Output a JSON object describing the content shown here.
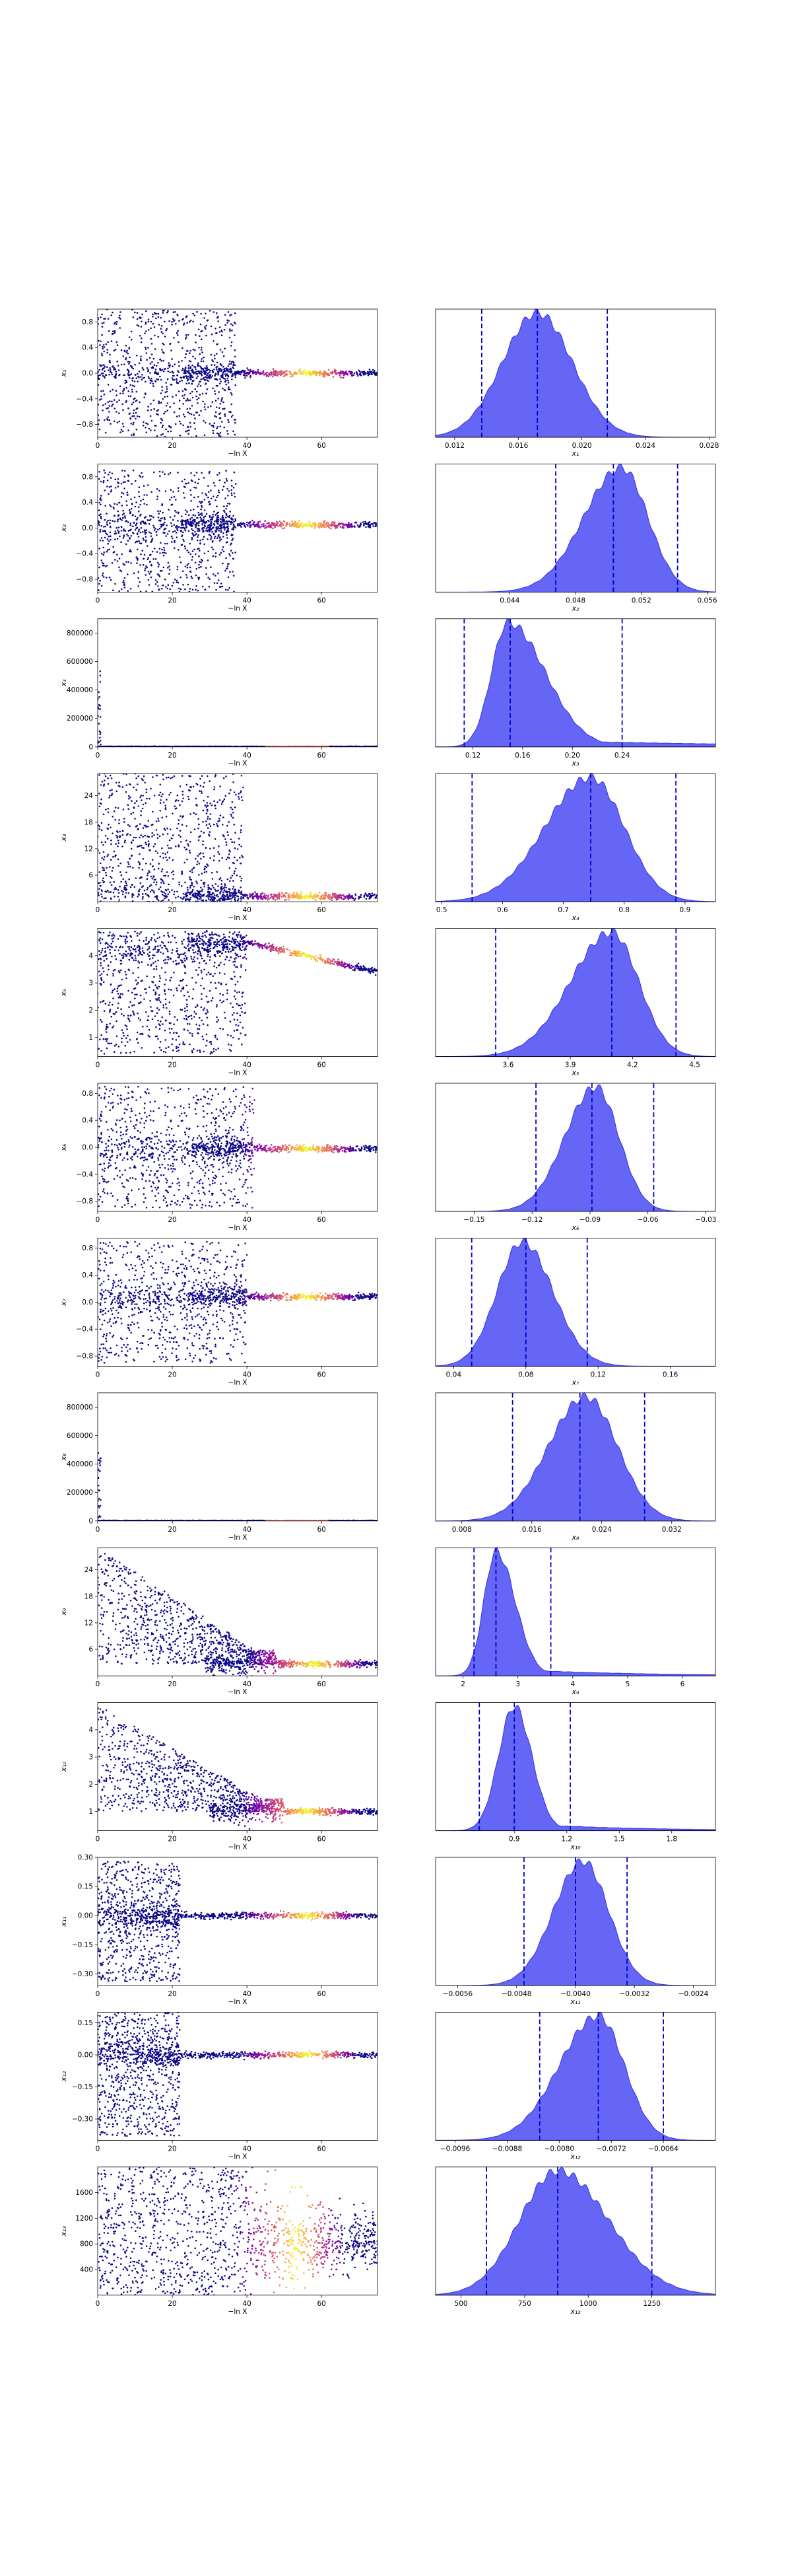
{
  "figure": {
    "trace_xlabel": "−ln X",
    "colors": {
      "kde_fill": "#4a4af5",
      "kde_line": "#3333e6",
      "quantile_line": "#0000cc",
      "scatter_low": "#0d0887",
      "scatter_mid": "#cc4778",
      "scatter_high": "#f0f921"
    }
  },
  "chart_data": [
    {
      "type": "scatter",
      "name": "x1",
      "ylabel": "x₁",
      "xlabel": "−ln X",
      "xlim": [
        0,
        75
      ],
      "ylim": [
        -1.0,
        1.0
      ],
      "yticks": [
        "−0.8",
        "−0.4",
        "0.0",
        "0.4",
        "0.8"
      ],
      "ytick_values": [
        -0.8,
        -0.4,
        0.0,
        0.4,
        0.8
      ],
      "xticks": [
        "0",
        "20",
        "40",
        "60"
      ],
      "xtick_values": [
        0,
        20,
        40,
        60
      ],
      "settle_x": 37,
      "converged_value": 0.0,
      "spread_low": -1.0,
      "spread_high": 1.0,
      "bright_at": [
        50,
        62
      ],
      "marginal": {
        "type": "area",
        "xlabel": "x₁",
        "xlim": [
          0.0108,
          0.0284
        ],
        "xticks": [
          "0.012",
          "0.016",
          "0.020",
          "0.024",
          "0.028"
        ],
        "xtick_values": [
          0.012,
          0.016,
          0.02,
          0.024,
          0.028
        ],
        "quantiles": [
          0.0137,
          0.0172,
          0.0216
        ],
        "mode": 0.0172,
        "sigma_left": 0.0022,
        "sigma_right": 0.0022
      }
    },
    {
      "type": "scatter",
      "name": "x2",
      "ylabel": "x₂",
      "xlabel": "−ln X",
      "xlim": [
        0,
        75
      ],
      "ylim": [
        -1.0,
        1.0
      ],
      "yticks": [
        "−0.8",
        "−0.4",
        "0.0",
        "0.4",
        "0.8"
      ],
      "ytick_values": [
        -0.8,
        -0.4,
        0.0,
        0.4,
        0.8
      ],
      "xticks": [
        "0",
        "20",
        "40",
        "60"
      ],
      "xtick_values": [
        0,
        20,
        40,
        60
      ],
      "settle_x": 37,
      "converged_value": 0.05,
      "spread_low": -1.0,
      "spread_high": 0.9,
      "bright_at": [
        50,
        62
      ],
      "marginal": {
        "type": "area",
        "xlabel": "x₂",
        "xlim": [
          0.0395,
          0.0565
        ],
        "xticks": [
          "0.044",
          "0.048",
          "0.052",
          "0.056"
        ],
        "xtick_values": [
          0.044,
          0.048,
          0.052,
          0.056
        ],
        "quantiles": [
          0.0468,
          0.0503,
          0.0542
        ],
        "mode": 0.0508,
        "sigma_left": 0.0023,
        "sigma_right": 0.0016
      }
    },
    {
      "type": "scatter",
      "name": "x3",
      "ylabel": "x₃",
      "xlabel": "−ln X",
      "xlim": [
        0,
        75
      ],
      "ylim": [
        0,
        900000
      ],
      "yticks": [
        "0",
        "200000",
        "400000",
        "600000",
        "800000"
      ],
      "ytick_values": [
        0,
        200000,
        400000,
        600000,
        800000
      ],
      "xticks": [
        "0",
        "20",
        "40",
        "60"
      ],
      "xtick_values": [
        0,
        20,
        40,
        60
      ],
      "settle_x": 2,
      "converged_value": 0,
      "spread_low": 0,
      "spread_high": 0,
      "spike": true,
      "bright_at": [
        50,
        62
      ],
      "marginal": {
        "type": "area",
        "xlabel": "x₃",
        "xlim": [
          0.09,
          0.315
        ],
        "xticks": [
          "0.12",
          "0.16",
          "0.20",
          "0.24"
        ],
        "xtick_values": [
          0.12,
          0.16,
          0.2,
          0.24
        ],
        "quantiles": [
          0.113,
          0.15,
          0.24
        ],
        "mode": 0.148,
        "sigma_left": 0.013,
        "sigma_right": 0.03,
        "long_tail": true
      }
    },
    {
      "type": "scatter",
      "name": "x4",
      "ylabel": "x₄",
      "xlabel": "−ln X",
      "xlim": [
        0,
        75
      ],
      "ylim": [
        0,
        29
      ],
      "yticks": [
        "6",
        "12",
        "18",
        "24"
      ],
      "ytick_values": [
        6,
        12,
        18,
        24
      ],
      "xticks": [
        "0",
        "20",
        "40",
        "60"
      ],
      "xtick_values": [
        0,
        20,
        40,
        60
      ],
      "settle_x": 39,
      "converged_value": 1.2,
      "spread_low": 1,
      "spread_high": 29,
      "bright_at": [
        50,
        62
      ],
      "marginal": {
        "type": "area",
        "xlabel": "x₄",
        "xlim": [
          0.49,
          0.95
        ],
        "xticks": [
          "0.5",
          "0.6",
          "0.7",
          "0.8",
          "0.9"
        ],
        "xtick_values": [
          0.5,
          0.6,
          0.7,
          0.8,
          0.9
        ],
        "quantiles": [
          0.55,
          0.745,
          0.885
        ],
        "mode": 0.745,
        "sigma_left": 0.075,
        "sigma_right": 0.055
      }
    },
    {
      "type": "scatter",
      "name": "x5",
      "ylabel": "x₅",
      "xlabel": "−ln X",
      "xlim": [
        0,
        75
      ],
      "ylim": [
        0.3,
        5.0
      ],
      "yticks": [
        "1",
        "2",
        "3",
        "4"
      ],
      "ytick_values": [
        1,
        2,
        3,
        4
      ],
      "xticks": [
        "0",
        "20",
        "40",
        "60"
      ],
      "xtick_values": [
        0,
        20,
        40,
        60
      ],
      "settle_x": 40,
      "converged_value": 4.2,
      "spread_low": 0.4,
      "spread_high": 4.9,
      "bright_at": [
        50,
        62
      ],
      "band_ramp": [
        40,
        75,
        4.5,
        3.4
      ],
      "marginal": {
        "type": "area",
        "xlabel": "x₅",
        "xlim": [
          3.25,
          4.6
        ],
        "xticks": [
          "3.6",
          "3.9",
          "4.2",
          "4.5"
        ],
        "xtick_values": [
          3.6,
          3.9,
          4.2,
          4.5
        ],
        "quantiles": [
          3.54,
          4.1,
          4.41
        ],
        "mode": 4.1,
        "sigma_left": 0.2,
        "sigma_right": 0.13
      }
    },
    {
      "type": "scatter",
      "name": "x6",
      "ylabel": "x₆",
      "xlabel": "−ln X",
      "xlim": [
        0,
        75
      ],
      "ylim": [
        -0.95,
        0.95
      ],
      "yticks": [
        "−0.8",
        "−0.4",
        "0.0",
        "0.4",
        "0.8"
      ],
      "ytick_values": [
        -0.8,
        -0.4,
        0.0,
        0.4,
        0.8
      ],
      "xticks": [
        "0",
        "20",
        "40",
        "60"
      ],
      "xtick_values": [
        0,
        20,
        40,
        60
      ],
      "settle_x": 42,
      "converged_value": -0.02,
      "spread_low": -0.9,
      "spread_high": 0.9,
      "bright_at": [
        50,
        62
      ],
      "marginal": {
        "type": "area",
        "xlabel": "x₆",
        "xlim": [
          -0.17,
          -0.025
        ],
        "xticks": [
          "−0.15",
          "−0.12",
          "−0.09",
          "−0.06",
          "−0.03"
        ],
        "xtick_values": [
          -0.15,
          -0.12,
          -0.09,
          -0.06,
          -0.03
        ],
        "quantiles": [
          -0.118,
          -0.089,
          -0.057
        ],
        "mode": -0.087,
        "sigma_left": 0.016,
        "sigma_right": 0.012
      }
    },
    {
      "type": "scatter",
      "name": "x7",
      "ylabel": "x₇",
      "xlabel": "−ln X",
      "xlim": [
        0,
        75
      ],
      "ylim": [
        -0.95,
        0.95
      ],
      "yticks": [
        "−0.8",
        "−0.4",
        "0.0",
        "0.4",
        "0.8"
      ],
      "ytick_values": [
        -0.8,
        -0.4,
        0.0,
        0.4,
        0.8
      ],
      "xticks": [
        "0",
        "20",
        "40",
        "60"
      ],
      "xtick_values": [
        0,
        20,
        40,
        60
      ],
      "settle_x": 40,
      "converged_value": 0.08,
      "spread_low": -0.9,
      "spread_high": 0.9,
      "bright_at": [
        50,
        62
      ],
      "marginal": {
        "type": "area",
        "xlabel": "x₇",
        "xlim": [
          0.03,
          0.185
        ],
        "xticks": [
          "0.04",
          "0.08",
          "0.12",
          "0.16"
        ],
        "xtick_values": [
          0.04,
          0.08,
          0.12,
          0.16
        ],
        "quantiles": [
          0.05,
          0.08,
          0.114
        ],
        "mode": 0.078,
        "sigma_left": 0.014,
        "sigma_right": 0.017
      }
    },
    {
      "type": "scatter",
      "name": "x8",
      "ylabel": "x₈",
      "xlabel": "−ln X",
      "xlim": [
        0,
        75
      ],
      "ylim": [
        0,
        900000
      ],
      "yticks": [
        "0",
        "200000",
        "400000",
        "600000",
        "800000"
      ],
      "ytick_values": [
        0,
        200000,
        400000,
        600000,
        800000
      ],
      "xticks": [
        "0",
        "20",
        "40",
        "60"
      ],
      "xtick_values": [
        0,
        20,
        40,
        60
      ],
      "settle_x": 2,
      "converged_value": 0,
      "spread_low": 0,
      "spread_high": 0,
      "spike": true,
      "bright_at": [
        50,
        62
      ],
      "marginal": {
        "type": "area",
        "xlabel": "x₈",
        "xlim": [
          0.005,
          0.037
        ],
        "xticks": [
          "0.008",
          "0.016",
          "0.024",
          "0.032"
        ],
        "xtick_values": [
          0.008,
          0.016,
          0.024,
          0.032
        ],
        "quantiles": [
          0.0138,
          0.0215,
          0.0289
        ],
        "mode": 0.0222,
        "sigma_left": 0.0043,
        "sigma_right": 0.0036
      }
    },
    {
      "type": "scatter",
      "name": "x9",
      "ylabel": "x₉",
      "xlabel": "−ln X",
      "xlim": [
        0,
        75
      ],
      "ylim": [
        0,
        29
      ],
      "yticks": [
        "6",
        "12",
        "18",
        "24"
      ],
      "ytick_values": [
        6,
        12,
        18,
        24
      ],
      "xticks": [
        "0",
        "20",
        "40",
        "60"
      ],
      "xtick_values": [
        0,
        20,
        40,
        60
      ],
      "settle_x": 48,
      "converged_value": 2.7,
      "spread_low": 1,
      "spread_high": 29,
      "decay": true,
      "bright_at": [
        52,
        64
      ],
      "marginal": {
        "type": "area",
        "xlabel": "x₉",
        "xlim": [
          1.5,
          6.6
        ],
        "xticks": [
          "2",
          "3",
          "4",
          "5",
          "6"
        ],
        "xtick_values": [
          2,
          3,
          4,
          5,
          6
        ],
        "quantiles": [
          2.2,
          2.6,
          3.6
        ],
        "mode": 2.6,
        "sigma_left": 0.22,
        "sigma_right": 0.35,
        "long_tail": true
      }
    },
    {
      "type": "scatter",
      "name": "x10",
      "ylabel": "x₁₀",
      "xlabel": "−ln X",
      "xlim": [
        0,
        75
      ],
      "ylim": [
        0.3,
        5.0
      ],
      "yticks": [
        "1",
        "2",
        "3",
        "4"
      ],
      "ytick_values": [
        1,
        2,
        3,
        4
      ],
      "xticks": [
        "0",
        "20",
        "40",
        "60"
      ],
      "xtick_values": [
        0,
        20,
        40,
        60
      ],
      "settle_x": 50,
      "converged_value": 1.0,
      "spread_low": 0.4,
      "spread_high": 4.9,
      "decay": true,
      "bright_at": [
        50,
        62
      ],
      "marginal": {
        "type": "area",
        "xlabel": "x₁₀",
        "xlim": [
          0.45,
          2.05
        ],
        "xticks": [
          "0.9",
          "1.2",
          "1.5",
          "1.8"
        ],
        "xtick_values": [
          0.9,
          1.2,
          1.5,
          1.8
        ],
        "quantiles": [
          0.7,
          0.9,
          1.22
        ],
        "mode": 0.9,
        "sigma_left": 0.09,
        "sigma_right": 0.1,
        "long_tail": true
      }
    },
    {
      "type": "scatter",
      "name": "x11",
      "ylabel": "x₁₁",
      "xlabel": "−ln X",
      "xlim": [
        0,
        75
      ],
      "ylim": [
        -0.36,
        0.3
      ],
      "yticks": [
        "−0.30",
        "−0.15",
        "0.00",
        "0.15",
        "0.30"
      ],
      "ytick_values": [
        -0.3,
        -0.15,
        0.0,
        0.15,
        0.3
      ],
      "xticks": [
        "0",
        "20",
        "40",
        "60"
      ],
      "xtick_values": [
        0,
        20,
        40,
        60
      ],
      "settle_x": 22,
      "converged_value": 0.0,
      "spread_low": -0.34,
      "spread_high": 0.28,
      "bright_at": [
        50,
        62
      ],
      "marginal": {
        "type": "area",
        "xlabel": "x₁₁",
        "xlim": [
          -0.0059,
          -0.0021
        ],
        "xticks": [
          "−0.0056",
          "−0.0048",
          "−0.0040",
          "−0.0032",
          "−0.0024"
        ],
        "xtick_values": [
          -0.0056,
          -0.0048,
          -0.004,
          -0.0032,
          -0.0024
        ],
        "quantiles": [
          -0.0047,
          -0.004,
          -0.0033
        ],
        "mode": -0.0039,
        "sigma_left": 0.0004,
        "sigma_right": 0.00035
      }
    },
    {
      "type": "scatter",
      "name": "x12",
      "ylabel": "x₁₂",
      "xlabel": "−ln X",
      "xlim": [
        0,
        75
      ],
      "ylim": [
        -0.4,
        0.2
      ],
      "yticks": [
        "−0.30",
        "−0.15",
        "0.00",
        "0.15"
      ],
      "ytick_values": [
        -0.3,
        -0.15,
        0.0,
        0.15
      ],
      "xticks": [
        "0",
        "20",
        "40",
        "60"
      ],
      "xtick_values": [
        0,
        20,
        40,
        60
      ],
      "settle_x": 22,
      "converged_value": 0.0,
      "spread_low": -0.38,
      "spread_high": 0.2,
      "bright_at": [
        50,
        62
      ],
      "marginal": {
        "type": "area",
        "xlabel": "x₁₂",
        "xlim": [
          -0.0099,
          -0.0056
        ],
        "xticks": [
          "−0.0096",
          "−0.0088",
          "−0.0080",
          "−0.0072",
          "−0.0064"
        ],
        "xtick_values": [
          -0.0096,
          -0.0088,
          -0.008,
          -0.0072,
          -0.0064
        ],
        "quantiles": [
          -0.0083,
          -0.0074,
          -0.0064
        ],
        "mode": -0.0074,
        "sigma_left": 0.0006,
        "sigma_right": 0.0004
      }
    },
    {
      "type": "scatter",
      "name": "x13",
      "ylabel": "x₁₃",
      "xlabel": "−ln X",
      "xlim": [
        0,
        75
      ],
      "ylim": [
        0,
        2000
      ],
      "yticks": [
        "400",
        "800",
        "1200",
        "1600"
      ],
      "ytick_values": [
        400,
        800,
        1200,
        1600
      ],
      "xticks": [
        "0",
        "20",
        "40",
        "60"
      ],
      "xtick_values": [
        0,
        20,
        40,
        60
      ],
      "settle_x": 80,
      "converged_value": 850,
      "spread_low": 0,
      "spread_high": 2000,
      "broad": true,
      "bright_at": [
        48,
        58
      ],
      "marginal": {
        "type": "area",
        "xlabel": "x₁₃",
        "xlim": [
          400,
          1500
        ],
        "xticks": [
          "500",
          "750",
          "1000",
          "1250"
        ],
        "xtick_values": [
          500,
          750,
          1000,
          1250
        ],
        "quantiles": [
          600,
          880,
          1250
        ],
        "mode": 880,
        "sigma_left": 150,
        "sigma_right": 200
      }
    }
  ]
}
